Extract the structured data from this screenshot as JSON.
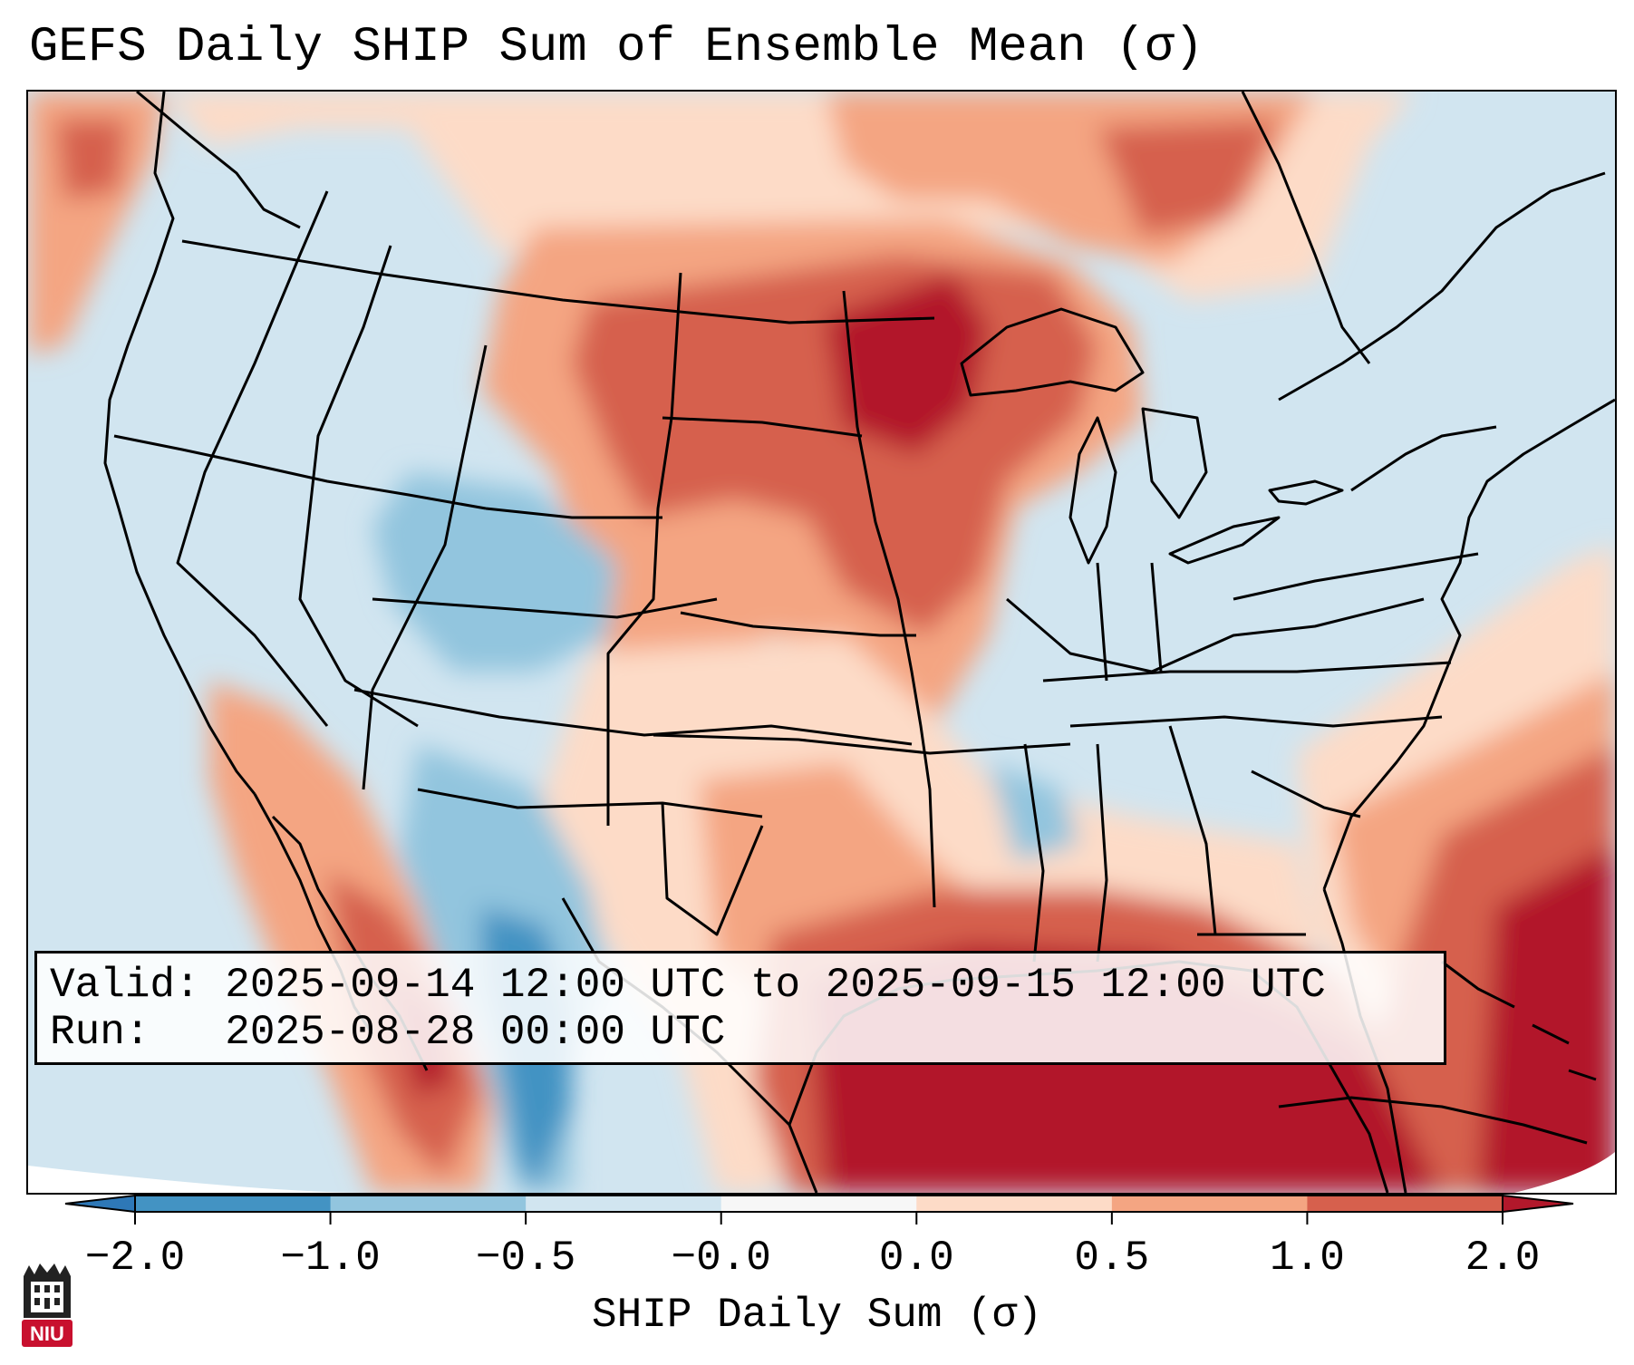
{
  "title": "GEFS Daily SHIP Sum of Ensemble Mean (σ)",
  "map": {
    "projection": "Lambert Conformal (CONUS)",
    "background_colors": {
      "ocean_base": "#cfe2ef",
      "land_outline": "#000000"
    }
  },
  "info": {
    "valid_label": "Valid:",
    "valid_value": "2025-09-14 12:00 UTC to 2025-09-15 12:00 UTC",
    "run_label": "Run:",
    "run_value": "2025-08-28 00:00 UTC"
  },
  "colorbar": {
    "label": "SHIP Daily Sum (σ)",
    "ticks": [
      "−2.0",
      "−1.0",
      "−0.5",
      "−0.0",
      "0.0",
      "0.5",
      "1.0",
      "2.0"
    ],
    "bins": [
      {
        "from": "-inf",
        "to": -2.0,
        "color": "#2e78b7"
      },
      {
        "from": -2.0,
        "to": -1.0,
        "color": "#4393c3"
      },
      {
        "from": -1.0,
        "to": -0.5,
        "color": "#92c5de"
      },
      {
        "from": -0.5,
        "to": 0.0,
        "color": "#d1e5f0"
      },
      {
        "from": 0.0,
        "to": 0.0,
        "color": "#f7f7f7"
      },
      {
        "from": 0.0,
        "to": 0.5,
        "color": "#fddbc7"
      },
      {
        "from": 0.5,
        "to": 1.0,
        "color": "#f4a582"
      },
      {
        "from": 1.0,
        "to": 2.0,
        "color": "#d6604d"
      },
      {
        "from": 2.0,
        "to": "inf",
        "color": "#b2182b"
      }
    ]
  },
  "logo": {
    "text": "NIU",
    "icon": "university-tower-icon",
    "color": "#c8102e"
  }
}
